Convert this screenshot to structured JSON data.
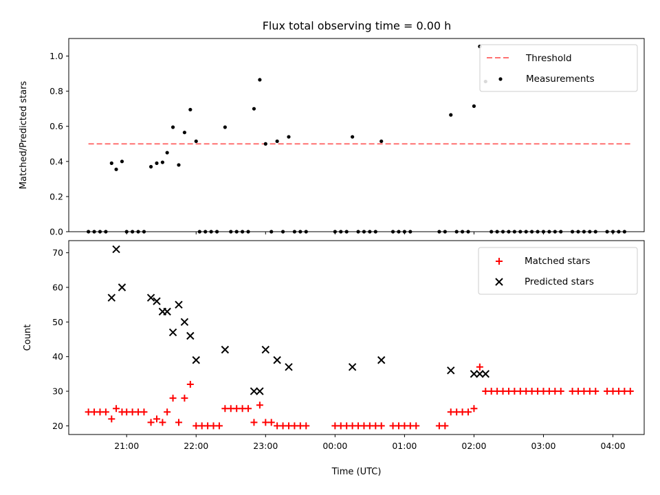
{
  "title": "Flux total observing time = 0.00 h",
  "colors": {
    "threshold": "#ff7070",
    "matched": "#ff0000",
    "predicted": "#000000",
    "measurement": "#000000"
  },
  "chart_data": [
    {
      "type": "scatter",
      "ylabel": "Matched/Predicted stars",
      "ylim": [
        0,
        1.1
      ],
      "yticks": [
        "0.0",
        "0.2",
        "0.4",
        "0.6",
        "0.8",
        "1.0"
      ],
      "legend": {
        "placement": "top-right",
        "entries": [
          "Threshold",
          "Measurements"
        ]
      },
      "threshold": {
        "name": "Threshold",
        "value": 0.5,
        "x_start": "20:27",
        "x_end": "04:17"
      },
      "series": [
        {
          "name": "Measurements",
          "points": [
            [
              "20:27",
              0
            ],
            [
              "20:32",
              0
            ],
            [
              "20:37",
              0
            ],
            [
              "20:42",
              0
            ],
            [
              "20:47",
              0.39
            ],
            [
              "20:51",
              0.355
            ],
            [
              "20:56",
              0.4
            ],
            [
              "21:00",
              0
            ],
            [
              "21:05",
              0
            ],
            [
              "21:10",
              0
            ],
            [
              "21:15",
              0
            ],
            [
              "21:21",
              0.37
            ],
            [
              "21:26",
              0.39
            ],
            [
              "21:31",
              0.395
            ],
            [
              "21:35",
              0.45
            ],
            [
              "21:40",
              0.595
            ],
            [
              "21:45",
              0.38
            ],
            [
              "21:50",
              0.565
            ],
            [
              "21:55",
              0.695
            ],
            [
              "22:00",
              0.515
            ],
            [
              "22:03",
              0
            ],
            [
              "22:08",
              0
            ],
            [
              "22:13",
              0
            ],
            [
              "22:18",
              0
            ],
            [
              "22:25",
              0.595
            ],
            [
              "22:30",
              0
            ],
            [
              "22:35",
              0
            ],
            [
              "22:40",
              0
            ],
            [
              "22:45",
              0
            ],
            [
              "22:50",
              0.7
            ],
            [
              "22:55",
              0.865
            ],
            [
              "23:00",
              0.5
            ],
            [
              "23:05",
              0
            ],
            [
              "23:10",
              0.515
            ],
            [
              "23:15",
              0
            ],
            [
              "23:20",
              0.54
            ],
            [
              "23:25",
              0
            ],
            [
              "23:30",
              0
            ],
            [
              "23:35",
              0
            ],
            [
              "00:00",
              0
            ],
            [
              "00:05",
              0
            ],
            [
              "00:10",
              0
            ],
            [
              "00:15",
              0.54
            ],
            [
              "00:20",
              0
            ],
            [
              "00:25",
              0
            ],
            [
              "00:30",
              0
            ],
            [
              "00:35",
              0
            ],
            [
              "00:40",
              0.515
            ],
            [
              "00:50",
              0
            ],
            [
              "00:55",
              0
            ],
            [
              "01:00",
              0
            ],
            [
              "01:05",
              0
            ],
            [
              "01:30",
              0
            ],
            [
              "01:35",
              0
            ],
            [
              "01:40",
              0.665
            ],
            [
              "01:45",
              0
            ],
            [
              "01:50",
              0
            ],
            [
              "01:55",
              0
            ],
            [
              "02:00",
              0.715
            ],
            [
              "02:05",
              1.055
            ],
            [
              "02:10",
              0.855
            ],
            [
              "02:15",
              0
            ],
            [
              "02:20",
              0
            ],
            [
              "02:25",
              0
            ],
            [
              "02:30",
              0
            ],
            [
              "02:35",
              0
            ],
            [
              "02:40",
              0
            ],
            [
              "02:45",
              0
            ],
            [
              "02:50",
              0
            ],
            [
              "02:55",
              0
            ],
            [
              "03:00",
              0
            ],
            [
              "03:05",
              0
            ],
            [
              "03:10",
              0
            ],
            [
              "03:15",
              0
            ],
            [
              "03:25",
              0
            ],
            [
              "03:30",
              0
            ],
            [
              "03:35",
              0
            ],
            [
              "03:40",
              0
            ],
            [
              "03:45",
              0
            ],
            [
              "03:55",
              0
            ],
            [
              "04:00",
              0
            ],
            [
              "04:05",
              0
            ],
            [
              "04:10",
              0
            ]
          ]
        }
      ]
    },
    {
      "type": "scatter",
      "ylabel": "Count",
      "xlabel": "Time (UTC)",
      "ylim": [
        17.5,
        73.5
      ],
      "yticks": [
        "20",
        "30",
        "40",
        "50",
        "60",
        "70"
      ],
      "xticks": [
        "21:00",
        "22:00",
        "23:00",
        "00:00",
        "01:00",
        "02:00",
        "03:00",
        "04:00"
      ],
      "legend": {
        "placement": "top-right",
        "entries": [
          "Matched stars",
          "Predicted stars"
        ]
      },
      "series": [
        {
          "name": "Matched stars",
          "points": [
            [
              "20:27",
              24
            ],
            [
              "20:32",
              24
            ],
            [
              "20:37",
              24
            ],
            [
              "20:42",
              24
            ],
            [
              "20:47",
              22
            ],
            [
              "20:51",
              25
            ],
            [
              "20:56",
              24
            ],
            [
              "21:00",
              24
            ],
            [
              "21:05",
              24
            ],
            [
              "21:10",
              24
            ],
            [
              "21:15",
              24
            ],
            [
              "21:21",
              21
            ],
            [
              "21:26",
              22
            ],
            [
              "21:31",
              21
            ],
            [
              "21:35",
              24
            ],
            [
              "21:40",
              28
            ],
            [
              "21:45",
              21
            ],
            [
              "21:50",
              28
            ],
            [
              "21:55",
              32
            ],
            [
              "22:00",
              20
            ],
            [
              "22:05",
              20
            ],
            [
              "22:10",
              20
            ],
            [
              "22:15",
              20
            ],
            [
              "22:20",
              20
            ],
            [
              "22:25",
              25
            ],
            [
              "22:30",
              25
            ],
            [
              "22:35",
              25
            ],
            [
              "22:40",
              25
            ],
            [
              "22:45",
              25
            ],
            [
              "22:50",
              21
            ],
            [
              "22:55",
              26
            ],
            [
              "23:00",
              21
            ],
            [
              "23:05",
              21
            ],
            [
              "23:10",
              20
            ],
            [
              "23:15",
              20
            ],
            [
              "23:20",
              20
            ],
            [
              "23:25",
              20
            ],
            [
              "23:30",
              20
            ],
            [
              "23:35",
              20
            ],
            [
              "00:00",
              20
            ],
            [
              "00:05",
              20
            ],
            [
              "00:10",
              20
            ],
            [
              "00:15",
              20
            ],
            [
              "00:20",
              20
            ],
            [
              "00:25",
              20
            ],
            [
              "00:30",
              20
            ],
            [
              "00:35",
              20
            ],
            [
              "00:40",
              20
            ],
            [
              "00:50",
              20
            ],
            [
              "00:55",
              20
            ],
            [
              "01:00",
              20
            ],
            [
              "01:05",
              20
            ],
            [
              "01:10",
              20
            ],
            [
              "01:30",
              20
            ],
            [
              "01:35",
              20
            ],
            [
              "01:40",
              24
            ],
            [
              "01:45",
              24
            ],
            [
              "01:50",
              24
            ],
            [
              "01:55",
              24
            ],
            [
              "02:00",
              25
            ],
            [
              "02:05",
              37
            ],
            [
              "02:10",
              30
            ],
            [
              "02:15",
              30
            ],
            [
              "02:20",
              30
            ],
            [
              "02:25",
              30
            ],
            [
              "02:30",
              30
            ],
            [
              "02:35",
              30
            ],
            [
              "02:40",
              30
            ],
            [
              "02:45",
              30
            ],
            [
              "02:50",
              30
            ],
            [
              "02:55",
              30
            ],
            [
              "03:00",
              30
            ],
            [
              "03:05",
              30
            ],
            [
              "03:10",
              30
            ],
            [
              "03:15",
              30
            ],
            [
              "03:25",
              30
            ],
            [
              "03:30",
              30
            ],
            [
              "03:35",
              30
            ],
            [
              "03:40",
              30
            ],
            [
              "03:45",
              30
            ],
            [
              "03:55",
              30
            ],
            [
              "04:00",
              30
            ],
            [
              "04:05",
              30
            ],
            [
              "04:10",
              30
            ],
            [
              "04:15",
              30
            ]
          ]
        },
        {
          "name": "Predicted stars",
          "points": [
            [
              "20:47",
              57
            ],
            [
              "20:51",
              71
            ],
            [
              "20:56",
              60
            ],
            [
              "21:21",
              57
            ],
            [
              "21:26",
              56
            ],
            [
              "21:31",
              53
            ],
            [
              "21:35",
              53
            ],
            [
              "21:40",
              47
            ],
            [
              "21:45",
              55
            ],
            [
              "21:50",
              50
            ],
            [
              "21:55",
              46
            ],
            [
              "22:00",
              39
            ],
            [
              "22:25",
              42
            ],
            [
              "22:50",
              30
            ],
            [
              "22:55",
              30
            ],
            [
              "23:00",
              42
            ],
            [
              "23:10",
              39
            ],
            [
              "23:20",
              37
            ],
            [
              "00:15",
              37
            ],
            [
              "00:40",
              39
            ],
            [
              "01:40",
              36
            ],
            [
              "02:00",
              35
            ],
            [
              "02:05",
              35
            ],
            [
              "02:10",
              35
            ]
          ]
        }
      ]
    }
  ]
}
